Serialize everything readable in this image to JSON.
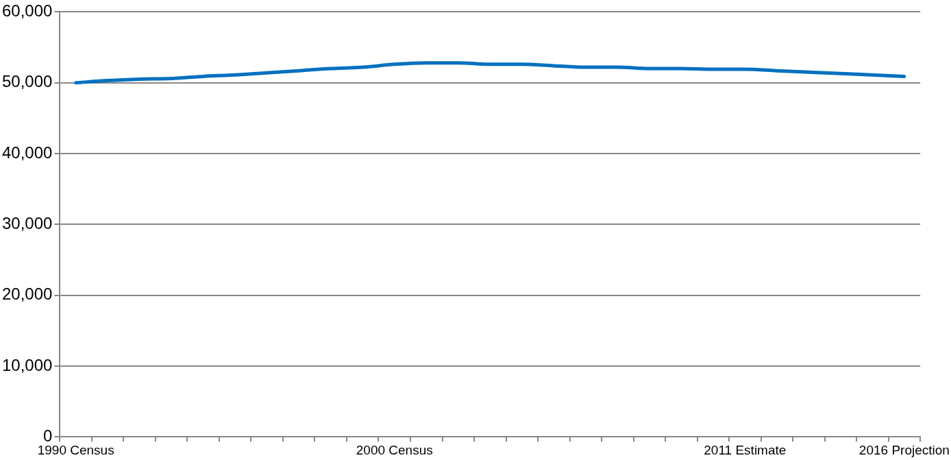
{
  "chart_data": {
    "type": "line",
    "categories": [
      "1990 Census",
      null,
      null,
      null,
      null,
      null,
      null,
      null,
      null,
      null,
      "2000 Census",
      null,
      null,
      null,
      null,
      null,
      null,
      null,
      null,
      null,
      null,
      "2011 Estimate",
      null,
      null,
      null,
      null,
      "2016 Projection"
    ],
    "series": [
      {
        "color": "#0070c0",
        "values": [
          50000,
          50300,
          50500,
          50600,
          50900,
          51100,
          51400,
          51700,
          52000,
          52200,
          52600,
          52800,
          52800,
          52600,
          52600,
          52400,
          52200,
          52200,
          52000,
          52000,
          51900,
          51900,
          51700,
          51500,
          51300,
          51100,
          50900
        ]
      }
    ],
    "ylim": [
      0,
      60000
    ],
    "yticks": [
      0,
      {
        "value": 10000,
        "label": "10,000"
      },
      {
        "value": 20000,
        "label": "20,000"
      },
      {
        "value": 30000,
        "label": "30,000"
      },
      {
        "value": 40000,
        "label": "40,000"
      },
      {
        "value": 50000,
        "label": "50,000"
      },
      {
        "value": 60000,
        "label": "60,000"
      }
    ],
    "grid": "y",
    "legend": false,
    "marker": "none",
    "line_style": "solid"
  }
}
